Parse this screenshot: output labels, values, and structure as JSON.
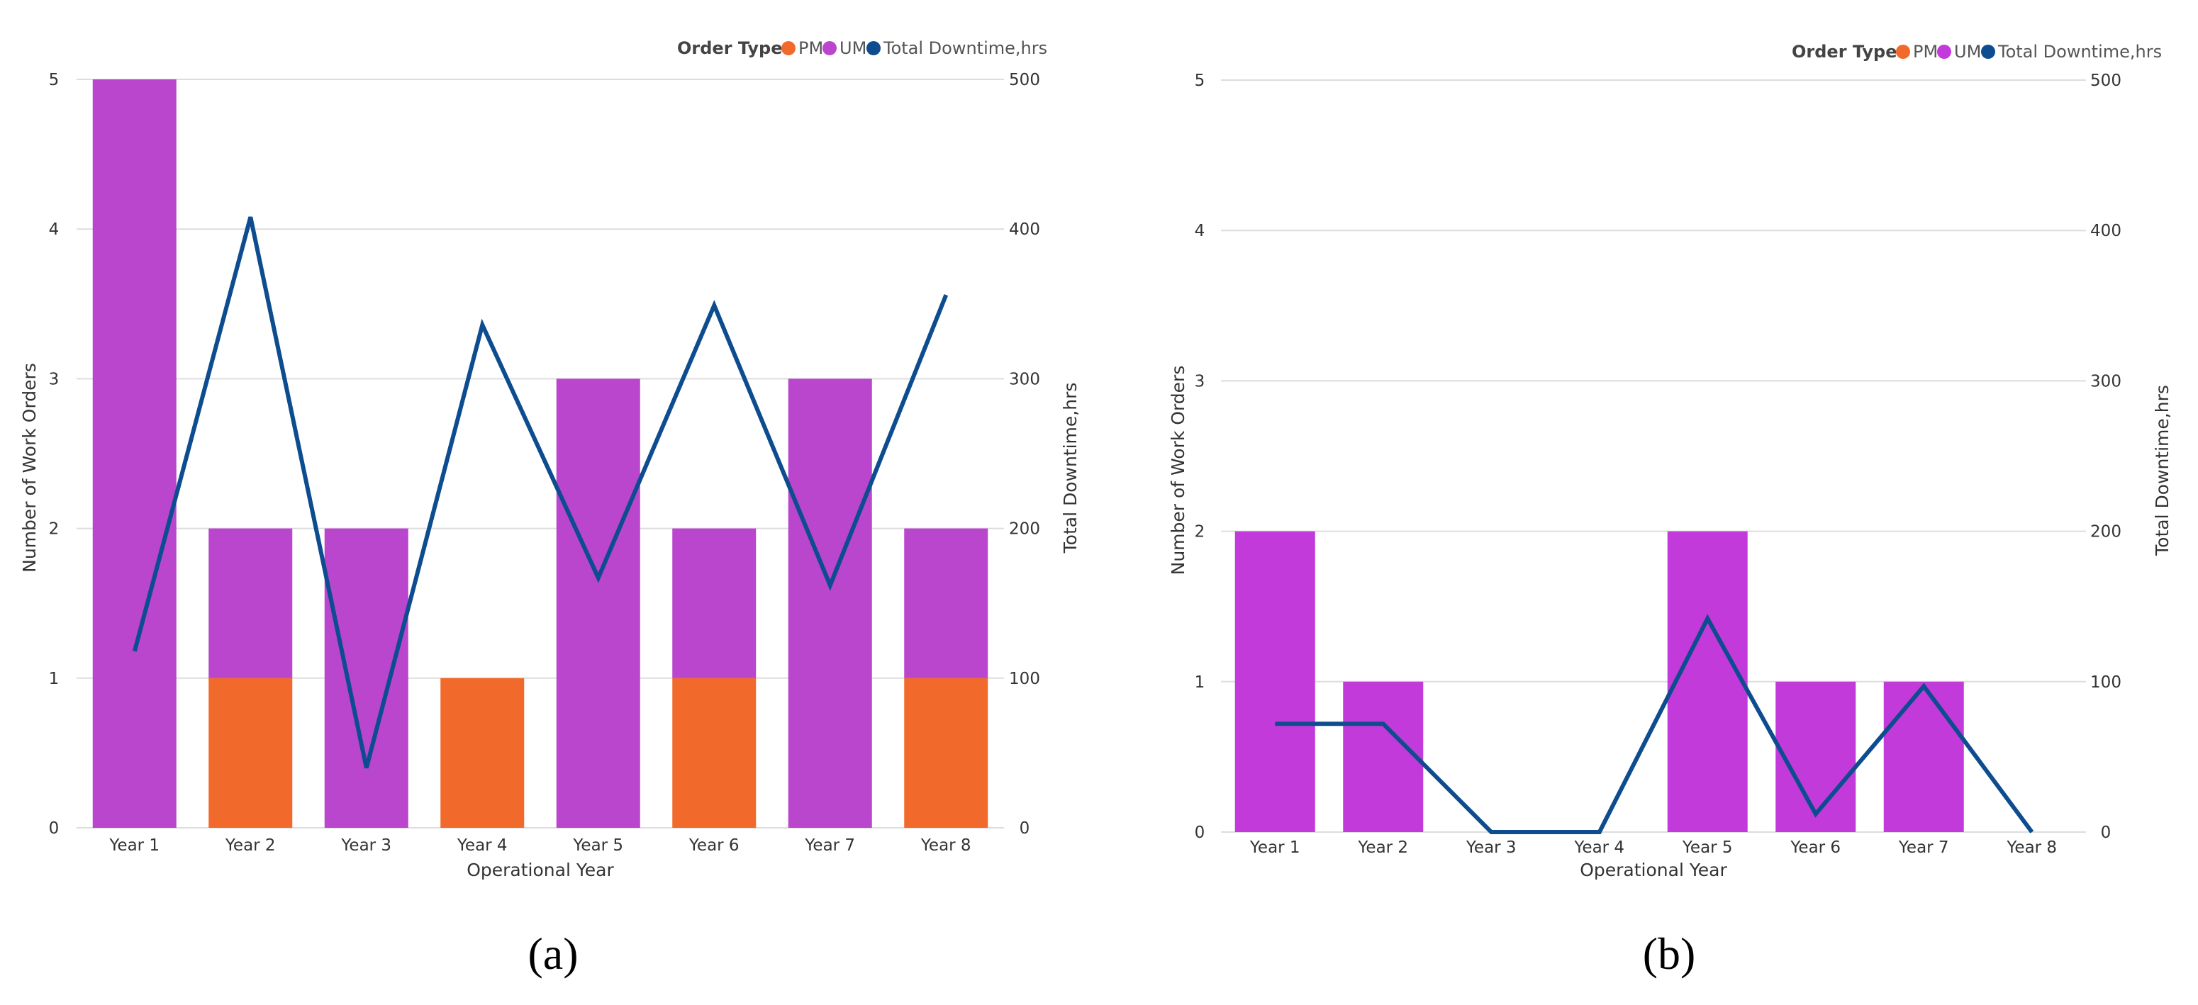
{
  "colors": {
    "pm": "#F26A2B",
    "um": "#B946CC",
    "um_b": "#C33ADB",
    "line": "#0D4D8F",
    "grid": "#DDDDDD"
  },
  "chart_data": [
    {
      "type": "bar",
      "panel_label": "(a)",
      "stacked": true,
      "legend_title": "Order Type",
      "legend_items": [
        "PM",
        "UM",
        "Total Downtime,hrs"
      ],
      "categories": [
        "Year 1",
        "Year 2",
        "Year 3",
        "Year 4",
        "Year 5",
        "Year 6",
        "Year 7",
        "Year 8"
      ],
      "series": [
        {
          "name": "PM",
          "values": [
            0,
            1,
            0,
            1,
            0,
            1,
            0,
            1
          ]
        },
        {
          "name": "UM",
          "values": [
            5,
            1,
            2,
            0,
            3,
            1,
            3,
            1
          ]
        }
      ],
      "line_series": {
        "name": "Total Downtime,hrs",
        "values": [
          118,
          408,
          40,
          336,
          167,
          349,
          162,
          356
        ]
      },
      "xlabel": "Operational Year",
      "ylabel": "Number of Work Orders",
      "ylabel_right": "Total Downtime,hrs",
      "ylim": [
        0,
        5
      ],
      "yticks": [
        "0",
        "1",
        "2",
        "3",
        "4",
        "5"
      ],
      "ylim_right": [
        0,
        500
      ],
      "yticks_right": [
        "0",
        "100",
        "200",
        "300",
        "400",
        "500"
      ]
    },
    {
      "type": "bar",
      "panel_label": "(b)",
      "stacked": true,
      "legend_title": "Order Type",
      "legend_items": [
        "PM",
        "UM",
        "Total Downtime,hrs"
      ],
      "categories": [
        "Year 1",
        "Year 2",
        "Year 3",
        "Year 4",
        "Year 5",
        "Year 6",
        "Year 7",
        "Year 8"
      ],
      "series": [
        {
          "name": "PM",
          "values": [
            0,
            0,
            0,
            0,
            0,
            0,
            0,
            0
          ]
        },
        {
          "name": "UM",
          "values": [
            2,
            1,
            0,
            0,
            2,
            1,
            1,
            0
          ]
        }
      ],
      "line_series": {
        "name": "Total Downtime,hrs",
        "values": [
          72,
          72,
          0,
          0,
          142,
          12,
          97,
          0
        ]
      },
      "xlabel": "Operational Year",
      "ylabel": "Number of Work Orders",
      "ylabel_right": "Total Downtime,hrs",
      "ylim": [
        0,
        5
      ],
      "yticks": [
        "0",
        "1",
        "2",
        "3",
        "4",
        "5"
      ],
      "ylim_right": [
        0,
        500
      ],
      "yticks_right": [
        "0",
        "100",
        "200",
        "300",
        "400",
        "500"
      ]
    }
  ]
}
